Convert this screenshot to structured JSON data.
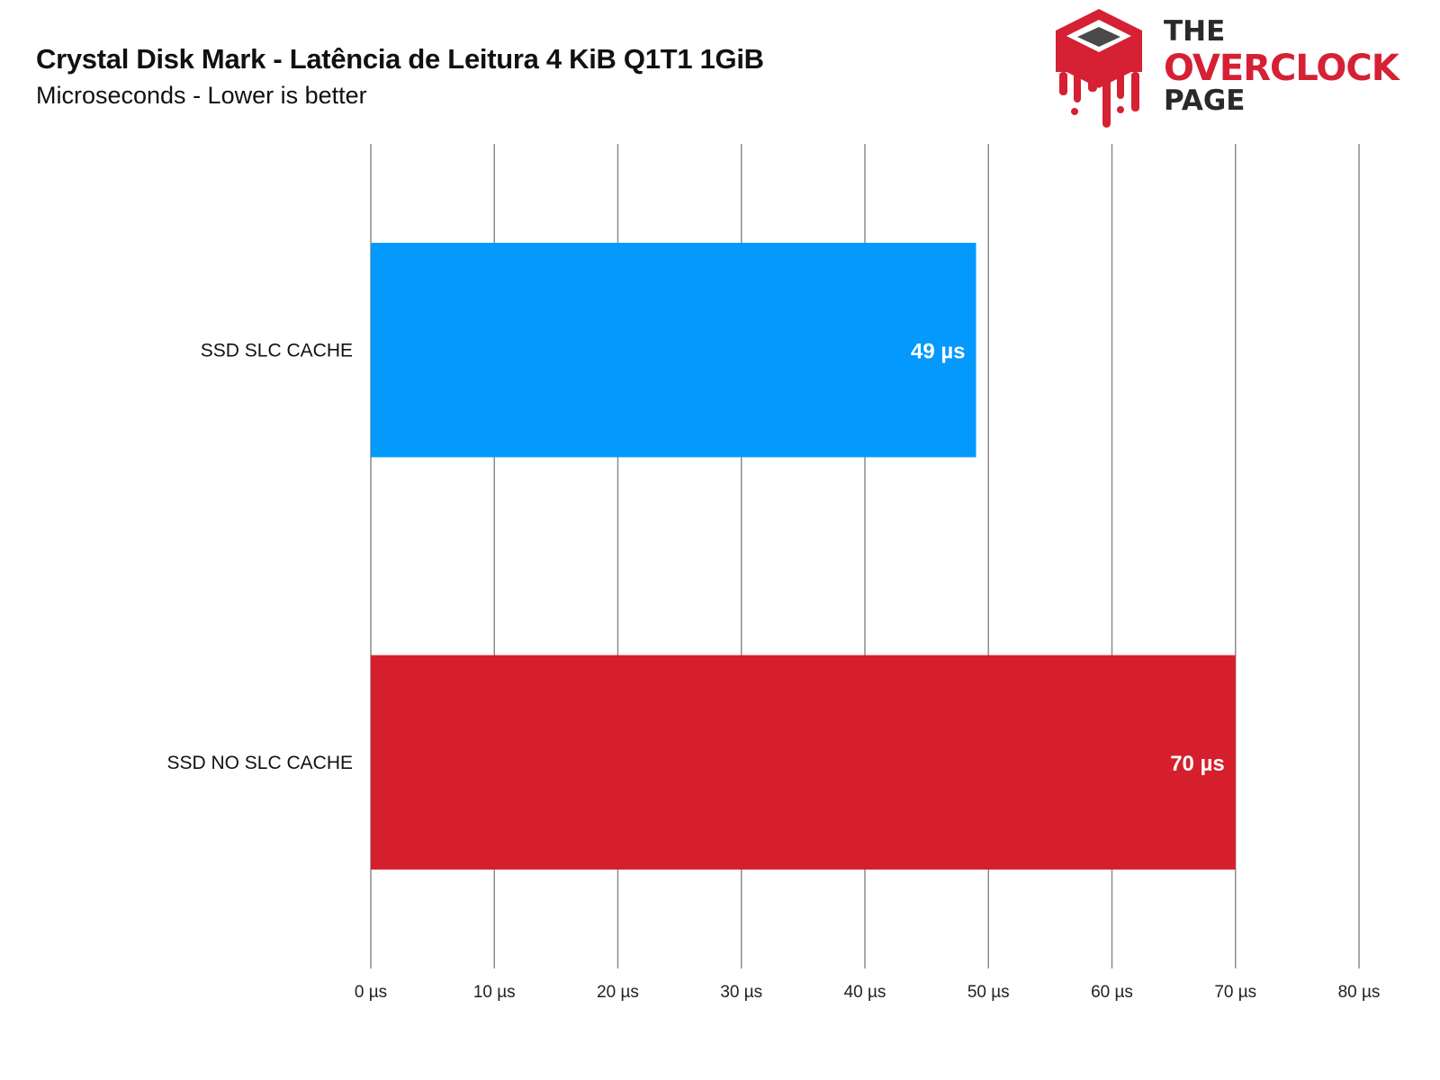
{
  "chart_data": {
    "type": "bar",
    "orientation": "horizontal",
    "title": "Crystal Disk Mark - Latência de Leitura 4 KiB Q1T1 1GiB",
    "subtitle": "Microseconds - Lower is better",
    "categories": [
      "SSD SLC CACHE",
      "SSD NO SLC CACHE"
    ],
    "values": [
      49,
      70
    ],
    "value_labels": [
      "49 µs",
      "70 µs"
    ],
    "colors": [
      "#0399fd",
      "#d61f2c"
    ],
    "xlim": [
      0,
      80
    ],
    "x_ticks": [
      0,
      10,
      20,
      30,
      40,
      50,
      60,
      70,
      80
    ],
    "x_tick_labels": [
      "0 µs",
      "10 µs",
      "20 µs",
      "30 µs",
      "40 µs",
      "50 µs",
      "60 µs",
      "70 µs",
      "80 µs"
    ],
    "grid": "vertical",
    "legend": "none"
  },
  "logo": {
    "line1": "THE",
    "line2": "OVERCLOCK",
    "line3": "PAGE",
    "brand_red": "#d62033",
    "brand_dark": "#2a2a2a"
  }
}
